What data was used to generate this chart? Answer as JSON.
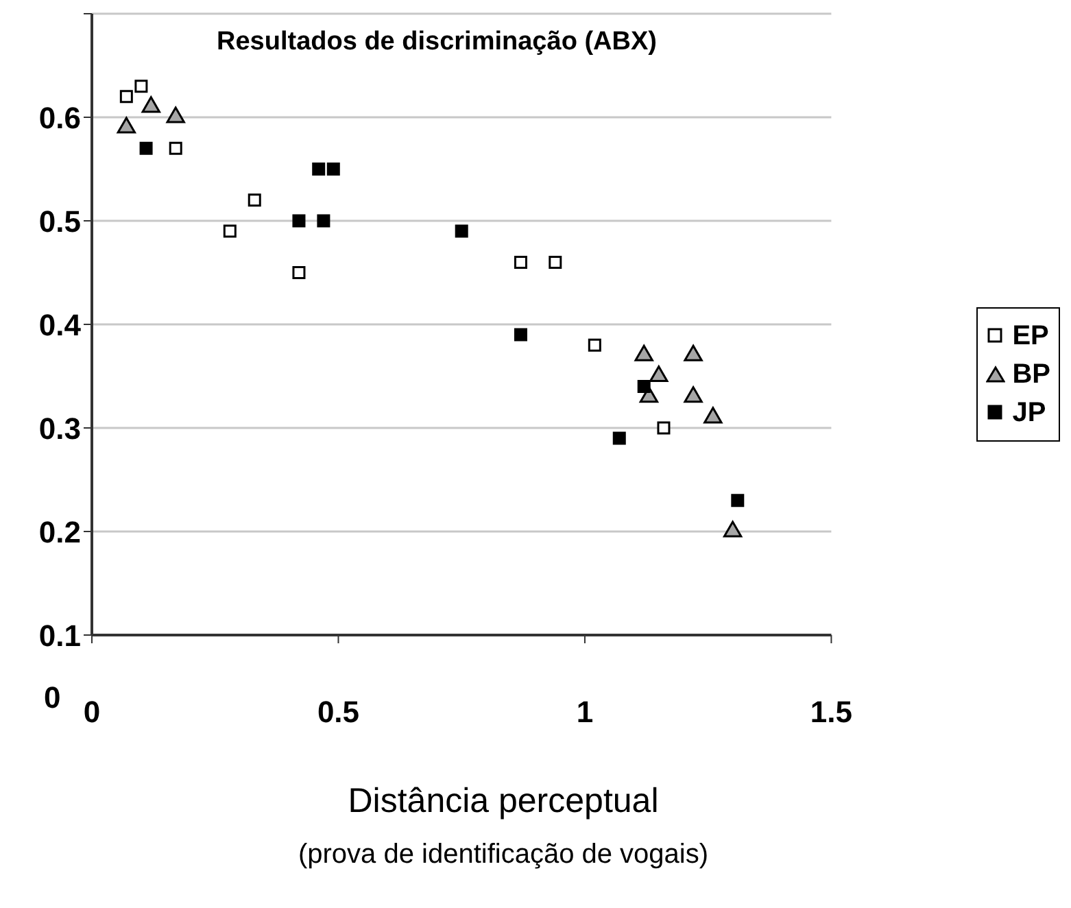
{
  "chart_data": {
    "type": "scatter",
    "title": "Resultados de discriminação (ABX)",
    "xlabel": "Distância perceptual",
    "annotations": [
      "0",
      "(prova de identificação de vogais)"
    ],
    "xlim": [
      0,
      1.5
    ],
    "xticks": [
      0,
      0.5,
      1,
      1.5
    ],
    "ylim": [
      0.1,
      0.7
    ],
    "yticks": [
      {
        "value": 0.7,
        "label": null
      },
      0.6,
      0.5,
      0.4,
      0.3,
      0.2,
      0.1
    ],
    "grid": "y",
    "legend": "right",
    "series": [
      {
        "name": "EP",
        "color": "#ffffff",
        "marker": "square",
        "x": [
          0.07,
          0.1,
          0.17,
          0.28,
          0.33,
          0.42,
          0.87,
          0.94,
          1.02,
          1.16
        ],
        "values": [
          0.62,
          0.63,
          0.57,
          0.49,
          0.52,
          0.45,
          0.46,
          0.46,
          0.38,
          0.3
        ]
      },
      {
        "name": "BP",
        "color": "#a6a6a6",
        "marker": "triangle",
        "x": [
          0.07,
          0.12,
          0.17,
          1.12,
          1.22,
          1.15,
          1.13,
          1.22,
          1.26,
          1.3
        ],
        "values": [
          0.59,
          0.61,
          0.6,
          0.37,
          0.37,
          0.35,
          0.33,
          0.33,
          0.31,
          0.2
        ]
      },
      {
        "name": "JP",
        "color": "#000000",
        "marker": "square",
        "x": [
          0.11,
          0.42,
          0.47,
          0.46,
          0.49,
          0.75,
          0.87,
          1.07,
          1.12,
          1.31
        ],
        "values": [
          0.57,
          0.5,
          0.5,
          0.55,
          0.55,
          0.49,
          0.39,
          0.29,
          0.34,
          0.23
        ]
      }
    ]
  }
}
